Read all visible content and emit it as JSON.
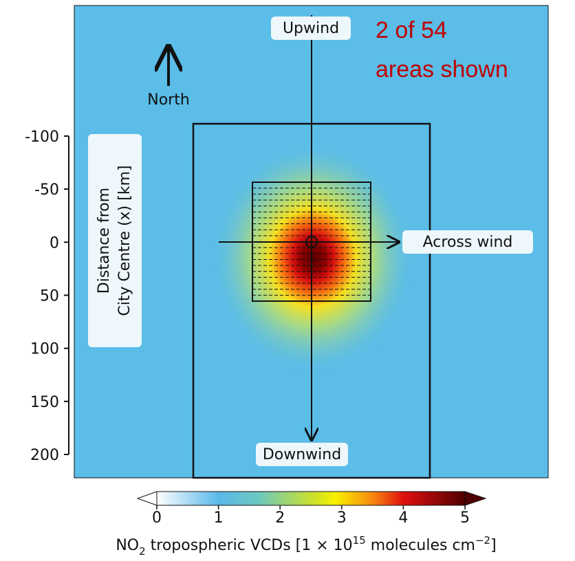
{
  "chart_data": {
    "type": "heatmap",
    "ylabel": [
      "Distance from",
      "City Centre (x) [km]"
    ],
    "ylim": [
      -223,
      222
    ],
    "y_inverted": true,
    "yticks": [
      -100,
      -50,
      0,
      50,
      100,
      150,
      200
    ],
    "annotations": {
      "upwind": "Upwind",
      "downwind": "Downwind",
      "across": "Across wind",
      "north": "North",
      "count": [
        "2 of 54",
        "areas shown"
      ]
    },
    "colorbar": {
      "lim": [
        0,
        5
      ],
      "ticks": [
        0,
        1,
        2,
        3,
        4,
        5
      ],
      "label": [
        "NO",
        "2",
        " tropospheric VCDs [1 × 10",
        "15",
        " molecules cm",
        "−2",
        "]"
      ]
    }
  }
}
